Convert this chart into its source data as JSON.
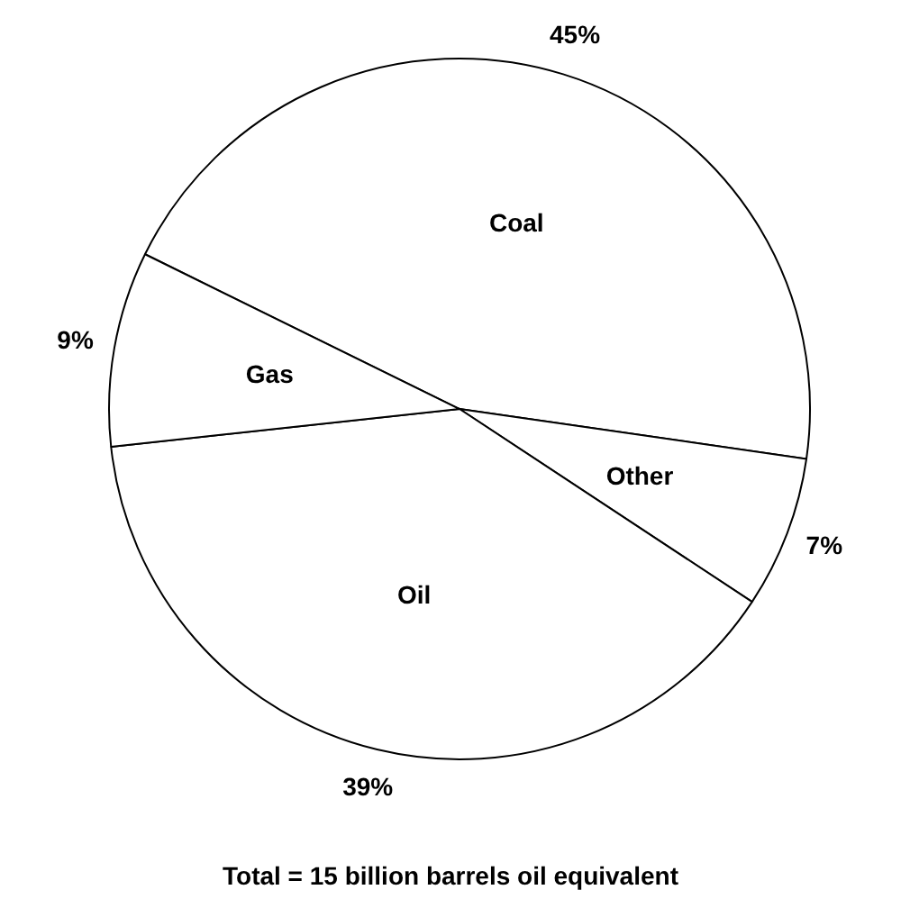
{
  "chart_data": {
    "type": "pie",
    "categories": [
      "Coal",
      "Other",
      "Oil",
      "Gas"
    ],
    "values": [
      45,
      7,
      39,
      9
    ],
    "value_labels": [
      "45%",
      "7%",
      "39%",
      "9%"
    ],
    "colors": [
      "#ffffff",
      "#ffffff",
      "#ffffff",
      "#ffffff"
    ],
    "annotations": [
      "Total = 15 billion barrels oil equivalent"
    ],
    "legend": false
  }
}
